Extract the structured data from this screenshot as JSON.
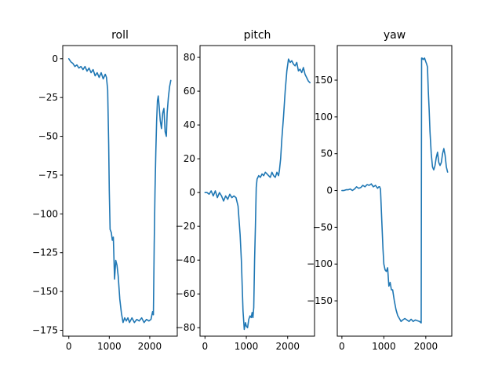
{
  "line_color": "#1f77b4",
  "chart_data": [
    {
      "type": "line",
      "title": "roll",
      "xlabel": "",
      "ylabel": "",
      "xlim": [
        -150,
        2680
      ],
      "ylim": [
        -178.8,
        8.5
      ],
      "xticks": [
        0,
        1000,
        2000
      ],
      "yticks": [
        0,
        -25,
        -50,
        -75,
        -100,
        -125,
        -150,
        -175
      ],
      "grid": false,
      "series": [
        {
          "x": [
            0,
            50,
            100,
            150,
            200,
            250,
            300,
            350,
            400,
            450,
            500,
            550,
            600,
            650,
            700,
            750,
            800,
            850,
            900,
            930,
            960,
            985,
            1000,
            1020,
            1050,
            1075,
            1100,
            1130,
            1160,
            1190,
            1220,
            1260,
            1300,
            1340,
            1380,
            1420,
            1460,
            1500,
            1560,
            1620,
            1680,
            1740,
            1800,
            1860,
            1920,
            1980,
            2030,
            2070,
            2090,
            2110,
            2130,
            2150,
            2170,
            2190,
            2210,
            2230,
            2260,
            2290,
            2320,
            2350,
            2380,
            2410,
            2430,
            2460,
            2490,
            2520
          ],
          "y": [
            0,
            -2,
            -3,
            -5,
            -4,
            -6,
            -5,
            -7,
            -5,
            -8,
            -6,
            -9,
            -7,
            -11,
            -9,
            -12,
            -9,
            -13,
            -10,
            -12,
            -20,
            -55,
            -85,
            -110,
            -112,
            -117,
            -115,
            -142,
            -130,
            -133,
            -140,
            -155,
            -164,
            -170,
            -167,
            -169,
            -167,
            -170,
            -167,
            -170,
            -168,
            -169,
            -167,
            -170,
            -168,
            -169,
            -168,
            -163,
            -165,
            -120,
            -85,
            -60,
            -40,
            -27,
            -24,
            -30,
            -40,
            -45,
            -35,
            -32,
            -47,
            -50,
            -35,
            -25,
            -18,
            -14
          ]
        }
      ]
    },
    {
      "type": "line",
      "title": "pitch",
      "xlabel": "",
      "ylabel": "",
      "xlim": [
        -120,
        2650
      ],
      "ylim": [
        -85,
        87
      ],
      "xticks": [
        0,
        1000,
        2000
      ],
      "yticks": [
        80,
        60,
        40,
        20,
        0,
        -20,
        -40,
        -60,
        -80
      ],
      "grid": false,
      "series": [
        {
          "x": [
            0,
            50,
            100,
            150,
            200,
            250,
            300,
            350,
            400,
            450,
            500,
            550,
            600,
            650,
            700,
            750,
            800,
            850,
            880,
            900,
            920,
            950,
            980,
            1000,
            1030,
            1060,
            1090,
            1120,
            1140,
            1160,
            1180,
            1200,
            1220,
            1240,
            1260,
            1300,
            1340,
            1380,
            1420,
            1460,
            1500,
            1540,
            1580,
            1620,
            1660,
            1700,
            1740,
            1780,
            1800,
            1830,
            1860,
            1900,
            1940,
            1980,
            2020,
            2060,
            2100,
            2140,
            2180,
            2220,
            2260,
            2300,
            2340,
            2380,
            2420,
            2460,
            2500,
            2540
          ],
          "y": [
            0,
            0,
            -1,
            1,
            -2,
            1,
            -3,
            0,
            -2,
            -5,
            -2,
            -4,
            -1,
            -3,
            -2,
            -3,
            -8,
            -25,
            -40,
            -55,
            -70,
            -81,
            -77,
            -79,
            -80,
            -75,
            -73,
            -74,
            -71,
            -74,
            -68,
            -40,
            -20,
            3,
            8,
            10,
            9,
            11,
            10,
            12,
            11,
            10,
            9,
            12,
            10,
            9,
            12,
            10,
            13,
            20,
            32,
            45,
            60,
            72,
            79,
            77,
            78,
            76,
            75,
            77,
            72,
            73,
            71,
            74,
            70,
            68,
            66,
            65
          ]
        }
      ]
    },
    {
      "type": "line",
      "title": "yaw",
      "xlabel": "",
      "ylabel": "",
      "xlim": [
        -110,
        2620
      ],
      "ylim": [
        -198,
        197
      ],
      "xticks": [
        0,
        1000,
        2000
      ],
      "yticks": [
        150,
        100,
        50,
        0,
        -50,
        -100,
        -150
      ],
      "grid": false,
      "series": [
        {
          "x": [
            0,
            50,
            100,
            150,
            200,
            250,
            300,
            350,
            400,
            450,
            500,
            550,
            600,
            650,
            700,
            750,
            800,
            850,
            880,
            900,
            920,
            950,
            980,
            1000,
            1030,
            1060,
            1090,
            1120,
            1150,
            1180,
            1210,
            1250,
            1290,
            1330,
            1370,
            1410,
            1450,
            1500,
            1550,
            1600,
            1650,
            1700,
            1750,
            1800,
            1850,
            1890,
            1900,
            1910,
            1940,
            1970,
            2000,
            2020,
            2040,
            2060,
            2080,
            2100,
            2130,
            2160,
            2190,
            2220,
            2250,
            2280,
            2310,
            2340,
            2370,
            2400,
            2430,
            2460,
            2490,
            2520
          ],
          "y": [
            0,
            0,
            1,
            1,
            2,
            0,
            2,
            5,
            3,
            4,
            7,
            5,
            8,
            7,
            9,
            5,
            7,
            3,
            5,
            5,
            2,
            -40,
            -80,
            -100,
            -108,
            -110,
            -105,
            -130,
            -125,
            -135,
            -135,
            -150,
            -162,
            -170,
            -174,
            -178,
            -176,
            -174,
            -176,
            -178,
            -175,
            -178,
            -176,
            -177,
            -178,
            -180,
            180,
            180,
            178,
            180,
            175,
            172,
            168,
            135,
            110,
            80,
            50,
            32,
            28,
            34,
            45,
            52,
            38,
            34,
            38,
            50,
            57,
            48,
            32,
            25
          ]
        }
      ]
    }
  ]
}
